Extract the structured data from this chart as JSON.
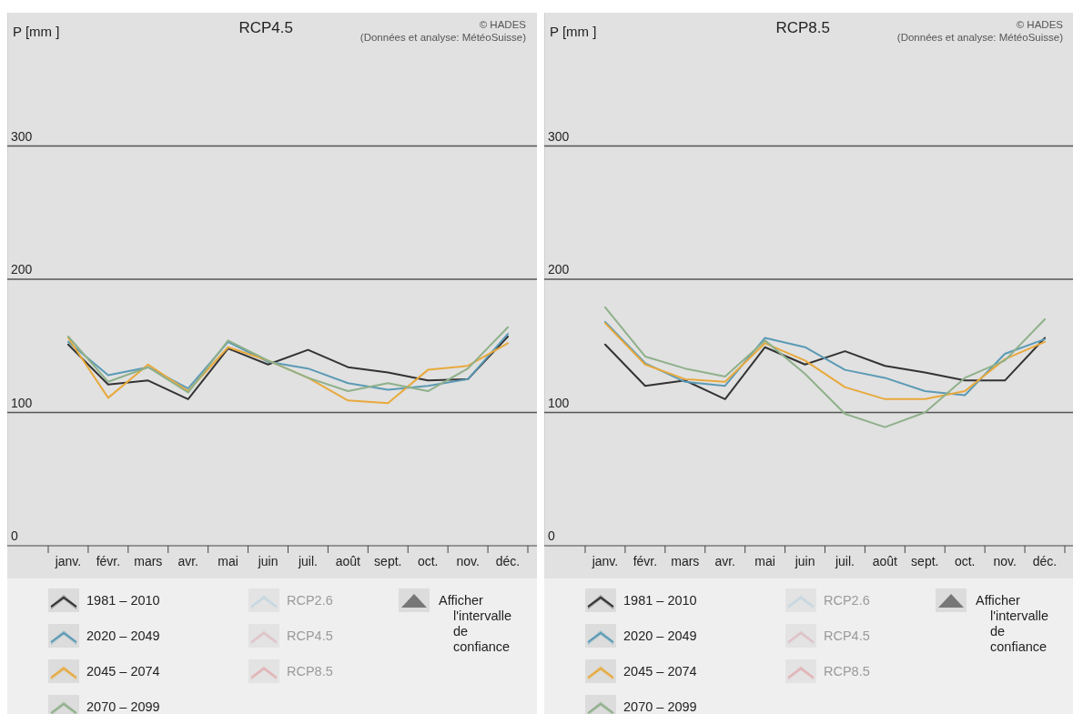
{
  "chart_data": [
    {
      "type": "line",
      "title": "RCP4.5",
      "subtitle": "(Données et analyse: MétéoSuisse)",
      "ylabel": "P [mm ]",
      "categories": [
        "janv.",
        "févr.",
        "mars",
        "avr.",
        "mai",
        "juin",
        "juil.",
        "août",
        "sept.",
        "oct.",
        "nov.",
        "déc."
      ],
      "ylim": [
        0,
        400
      ],
      "yticks": [
        0,
        100,
        200,
        300
      ],
      "grid": "y",
      "legend": "bottom",
      "marker": "none",
      "line_style": "solid",
      "annotations": [
        "© HADES",
        "RCP2.6",
        "RCP4.5",
        "RCP8.5",
        "Afficher l'intervalle de confiance"
      ],
      "series": [
        {
          "name": "1981 – 2010",
          "color": "#333333",
          "values": [
            151,
            121,
            124,
            110,
            148,
            136,
            147,
            134,
            130,
            124,
            125,
            157
          ]
        },
        {
          "name": "2020 – 2049",
          "color": "#5b9ab5",
          "values": [
            153,
            128,
            134,
            118,
            153,
            138,
            133,
            122,
            117,
            120,
            125,
            159
          ]
        },
        {
          "name": "2045 – 2074",
          "color": "#e8a93c",
          "values": [
            156,
            111,
            136,
            116,
            149,
            139,
            126,
            109,
            107,
            132,
            135,
            152
          ]
        },
        {
          "name": "2070 – 2099",
          "color": "#8fb08a",
          "values": [
            157,
            123,
            134,
            115,
            154,
            139,
            126,
            116,
            122,
            116,
            133,
            164
          ]
        }
      ]
    },
    {
      "type": "line",
      "title": "RCP8.5",
      "subtitle": "(Données et analyse: MétéoSuisse)",
      "ylabel": "P [mm ]",
      "categories": [
        "janv.",
        "févr.",
        "mars",
        "avr.",
        "mai",
        "juin",
        "juil.",
        "août",
        "sept.",
        "oct.",
        "nov.",
        "déc."
      ],
      "ylim": [
        0,
        400
      ],
      "yticks": [
        0,
        100,
        200,
        300
      ],
      "grid": "y",
      "legend": "bottom",
      "marker": "none",
      "line_style": "solid",
      "annotations": [
        "© HADES",
        "RCP2.6",
        "RCP4.5",
        "RCP8.5",
        "Afficher l'intervalle de confiance"
      ],
      "series": [
        {
          "name": "1981 – 2010",
          "color": "#333333",
          "values": [
            151,
            120,
            124,
            110,
            149,
            136,
            146,
            135,
            130,
            124,
            124,
            156
          ]
        },
        {
          "name": "2020 – 2049",
          "color": "#5b9ab5",
          "values": [
            168,
            137,
            123,
            120,
            156,
            149,
            132,
            126,
            116,
            113,
            144,
            155
          ]
        },
        {
          "name": "2045 – 2074",
          "color": "#e8a93c",
          "values": [
            167,
            136,
            125,
            123,
            152,
            139,
            119,
            110,
            110,
            116,
            140,
            153
          ]
        },
        {
          "name": "2070 – 2099",
          "color": "#8fb08a",
          "values": [
            179,
            142,
            133,
            127,
            154,
            129,
            99,
            89,
            100,
            126,
            139,
            170
          ]
        }
      ]
    }
  ]
}
